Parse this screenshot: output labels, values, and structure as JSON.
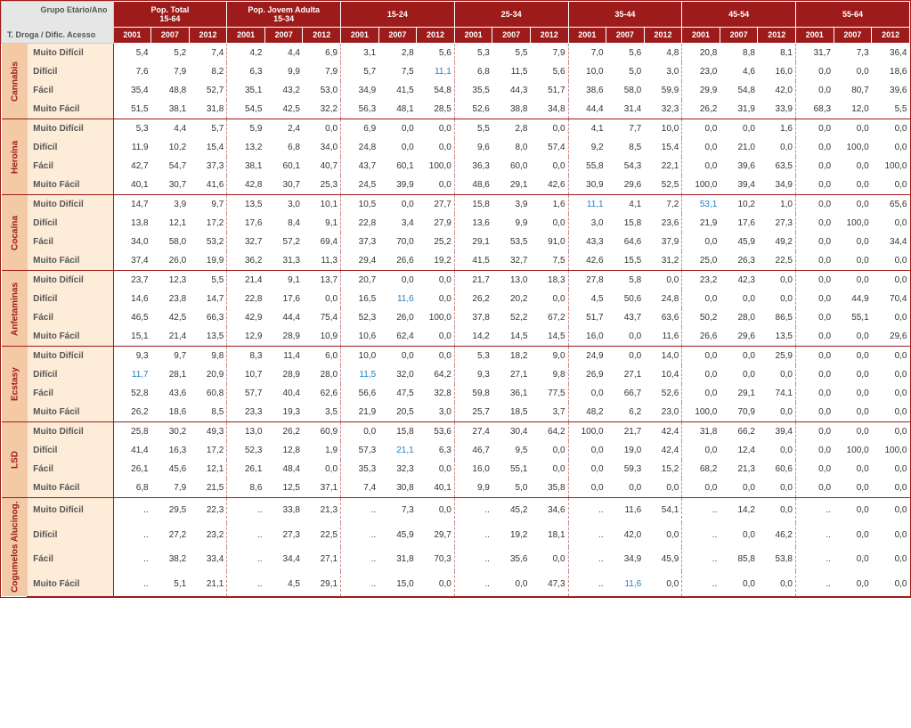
{
  "headers": {
    "corner_top": "Grupo Etário/Ano",
    "corner_bottom": "T. Droga / Dific. Acesso",
    "groups": [
      {
        "label": "Pop. Total\n15-64"
      },
      {
        "label": "Pop. Jovem Adulta\n15-34"
      },
      {
        "label": "15-24"
      },
      {
        "label": "25-34"
      },
      {
        "label": "35-44"
      },
      {
        "label": "45-54"
      },
      {
        "label": "55-64"
      }
    ],
    "years": [
      "2001",
      "2007",
      "2012"
    ]
  },
  "access_levels": [
    "Muito Difícil",
    "Difícil",
    "Fácil",
    "Muito Fácil"
  ],
  "drugs": [
    {
      "name": "Cannabis",
      "rows": [
        [
          "5,4",
          "5,2",
          "7,4",
          "4,2",
          "4,4",
          "6,9",
          "3,1",
          "2,8",
          "5,6",
          "5,3",
          "5,5",
          "7,9",
          "7,0",
          "5,6",
          "4,8",
          "20,8",
          "8,8",
          "8,1",
          "31,7",
          "7,3",
          "36,4"
        ],
        [
          "7,6",
          "7,9",
          "8,2",
          "6,3",
          "9,9",
          "7,9",
          "5,7",
          "7,5",
          "11,1",
          "6,8",
          "11,5",
          "5,6",
          "10,0",
          "5,0",
          "3,0",
          "23,0",
          "4,6",
          "16,0",
          "0,0",
          "0,0",
          "18,6"
        ],
        [
          "35,4",
          "48,8",
          "52,7",
          "35,1",
          "43,2",
          "53,0",
          "34,9",
          "41,5",
          "54,8",
          "35,5",
          "44,3",
          "51,7",
          "38,6",
          "58,0",
          "59,9",
          "29,9",
          "54,8",
          "42,0",
          "0,0",
          "80,7",
          "39,6"
        ],
        [
          "51,5",
          "38,1",
          "31,8",
          "54,5",
          "42,5",
          "32,2",
          "56,3",
          "48,1",
          "28,5",
          "52,6",
          "38,8",
          "34,8",
          "44,4",
          "31,4",
          "32,3",
          "26,2",
          "31,9",
          "33,9",
          "68,3",
          "12,0",
          "5,5"
        ]
      ],
      "blue_cells": [
        [
          1,
          8
        ]
      ]
    },
    {
      "name": "Heroína",
      "rows": [
        [
          "5,3",
          "4,4",
          "5,7",
          "5,9",
          "2,4",
          "0,0",
          "6,9",
          "0,0",
          "0,0",
          "5,5",
          "2,8",
          "0,0",
          "4,1",
          "7,7",
          "10,0",
          "0,0",
          "0,0",
          "1,6",
          "0,0",
          "0,0",
          "0,0"
        ],
        [
          "11,9",
          "10,2",
          "15,4",
          "13,2",
          "6,8",
          "34,0",
          "24,8",
          "0,0",
          "0,0",
          "9,6",
          "8,0",
          "57,4",
          "9,2",
          "8,5",
          "15,4",
          "0,0",
          "21,0",
          "0,0",
          "0,0",
          "100,0",
          "0,0"
        ],
        [
          "42,7",
          "54,7",
          "37,3",
          "38,1",
          "60,1",
          "40,7",
          "43,7",
          "60,1",
          "100,0",
          "36,3",
          "60,0",
          "0,0",
          "55,8",
          "54,3",
          "22,1",
          "0,0",
          "39,6",
          "63,5",
          "0,0",
          "0,0",
          "100,0"
        ],
        [
          "40,1",
          "30,7",
          "41,6",
          "42,8",
          "30,7",
          "25,3",
          "24,5",
          "39,9",
          "0,0",
          "48,6",
          "29,1",
          "42,6",
          "30,9",
          "29,6",
          "52,5",
          "100,0",
          "39,4",
          "34,9",
          "0,0",
          "0,0",
          "0,0"
        ]
      ],
      "blue_cells": []
    },
    {
      "name": "Cocaína",
      "rows": [
        [
          "14,7",
          "3,9",
          "9,7",
          "13,5",
          "3,0",
          "10,1",
          "10,5",
          "0,0",
          "27,7",
          "15,8",
          "3,9",
          "1,6",
          "11,1",
          "4,1",
          "7,2",
          "53,1",
          "10,2",
          "1,0",
          "0,0",
          "0,0",
          "65,6"
        ],
        [
          "13,8",
          "12,1",
          "17,2",
          "17,6",
          "8,4",
          "9,1",
          "22,8",
          "3,4",
          "27,9",
          "13,6",
          "9,9",
          "0,0",
          "3,0",
          "15,8",
          "23,6",
          "21,9",
          "17,6",
          "27,3",
          "0,0",
          "100,0",
          "0,0"
        ],
        [
          "34,0",
          "58,0",
          "53,2",
          "32,7",
          "57,2",
          "69,4",
          "37,3",
          "70,0",
          "25,2",
          "29,1",
          "53,5",
          "91,0",
          "43,3",
          "64,6",
          "37,9",
          "0,0",
          "45,9",
          "49,2",
          "0,0",
          "0,0",
          "34,4"
        ],
        [
          "37,4",
          "26,0",
          "19,9",
          "36,2",
          "31,3",
          "11,3",
          "29,4",
          "26,6",
          "19,2",
          "41,5",
          "32,7",
          "7,5",
          "42,6",
          "15,5",
          "31,2",
          "25,0",
          "26,3",
          "22,5",
          "0,0",
          "0,0",
          "0,0"
        ]
      ],
      "blue_cells": [
        [
          0,
          12
        ],
        [
          0,
          15
        ]
      ]
    },
    {
      "name": "Anfetaminas",
      "rows": [
        [
          "23,7",
          "12,3",
          "5,5",
          "21,4",
          "9,1",
          "13,7",
          "20,7",
          "0,0",
          "0,0",
          "21,7",
          "13,0",
          "18,3",
          "27,8",
          "5,8",
          "0,0",
          "23,2",
          "42,3",
          "0,0",
          "0,0",
          "0,0",
          "0,0"
        ],
        [
          "14,6",
          "23,8",
          "14,7",
          "22,8",
          "17,6",
          "0,0",
          "16,5",
          "11,6",
          "0,0",
          "26,2",
          "20,2",
          "0,0",
          "4,5",
          "50,6",
          "24,8",
          "0,0",
          "0,0",
          "0,0",
          "0,0",
          "44,9",
          "70,4"
        ],
        [
          "46,5",
          "42,5",
          "66,3",
          "42,9",
          "44,4",
          "75,4",
          "52,3",
          "26,0",
          "100,0",
          "37,8",
          "52,2",
          "67,2",
          "51,7",
          "43,7",
          "63,6",
          "50,2",
          "28,0",
          "86,5",
          "0,0",
          "55,1",
          "0,0"
        ],
        [
          "15,1",
          "21,4",
          "13,5",
          "12,9",
          "28,9",
          "10,9",
          "10,6",
          "62,4",
          "0,0",
          "14,2",
          "14,5",
          "14,5",
          "16,0",
          "0,0",
          "11,6",
          "26,6",
          "29,6",
          "13,5",
          "0,0",
          "0,0",
          "29,6"
        ]
      ],
      "blue_cells": [
        [
          1,
          7
        ]
      ]
    },
    {
      "name": "Ecstasy",
      "rows": [
        [
          "9,3",
          "9,7",
          "9,8",
          "8,3",
          "11,4",
          "6,0",
          "10,0",
          "0,0",
          "0,0",
          "5,3",
          "18,2",
          "9,0",
          "24,9",
          "0,0",
          "14,0",
          "0,0",
          "0,0",
          "25,9",
          "0,0",
          "0,0",
          "0,0"
        ],
        [
          "11,7",
          "28,1",
          "20,9",
          "10,7",
          "28,9",
          "28,0",
          "11,5",
          "32,0",
          "64,2",
          "9,3",
          "27,1",
          "9,8",
          "26,9",
          "27,1",
          "10,4",
          "0,0",
          "0,0",
          "0,0",
          "0,0",
          "0,0",
          "0,0"
        ],
        [
          "52,8",
          "43,6",
          "60,8",
          "57,7",
          "40,4",
          "62,6",
          "56,6",
          "47,5",
          "32,8",
          "59,8",
          "36,1",
          "77,5",
          "0,0",
          "66,7",
          "52,6",
          "0,0",
          "29,1",
          "74,1",
          "0,0",
          "0,0",
          "0,0"
        ],
        [
          "26,2",
          "18,6",
          "8,5",
          "23,3",
          "19,3",
          "3,5",
          "21,9",
          "20,5",
          "3,0",
          "25,7",
          "18,5",
          "3,7",
          "48,2",
          "6,2",
          "23,0",
          "100,0",
          "70,9",
          "0,0",
          "0,0",
          "0,0",
          "0,0"
        ]
      ],
      "blue_cells": [
        [
          1,
          0
        ],
        [
          1,
          6
        ]
      ]
    },
    {
      "name": "LSD",
      "rows": [
        [
          "25,8",
          "30,2",
          "49,3",
          "13,0",
          "26,2",
          "60,9",
          "0,0",
          "15,8",
          "53,6",
          "27,4",
          "30,4",
          "64,2",
          "100,0",
          "21,7",
          "42,4",
          "31,8",
          "66,2",
          "39,4",
          "0,0",
          "0,0",
          "0,0"
        ],
        [
          "41,4",
          "16,3",
          "17,2",
          "52,3",
          "12,8",
          "1,9",
          "57,3",
          "21,1",
          "6,3",
          "46,7",
          "9,5",
          "0,0",
          "0,0",
          "19,0",
          "42,4",
          "0,0",
          "12,4",
          "0,0",
          "0,0",
          "100,0",
          "100,0"
        ],
        [
          "26,1",
          "45,6",
          "12,1",
          "26,1",
          "48,4",
          "0,0",
          "35,3",
          "32,3",
          "0,0",
          "16,0",
          "55,1",
          "0,0",
          "0,0",
          "59,3",
          "15,2",
          "68,2",
          "21,3",
          "60,6",
          "0,0",
          "0,0",
          "0,0"
        ],
        [
          "6,8",
          "7,9",
          "21,5",
          "8,6",
          "12,5",
          "37,1",
          "7,4",
          "30,8",
          "40,1",
          "9,9",
          "5,0",
          "35,8",
          "0,0",
          "0,0",
          "0,0",
          "0,0",
          "0,0",
          "0,0",
          "0,0",
          "0,0",
          "0,0"
        ]
      ],
      "blue_cells": [
        [
          1,
          7
        ]
      ]
    },
    {
      "name": "Cogumelos Alucinog.",
      "rows": [
        [
          "..",
          "29,5",
          "22,3",
          "..",
          "33,8",
          "21,3",
          "..",
          "7,3",
          "0,0",
          "..",
          "45,2",
          "34,6",
          "..",
          "11,6",
          "54,1",
          "..",
          "14,2",
          "0,0",
          "..",
          "0,0",
          "0,0"
        ],
        [
          "..",
          "27,2",
          "23,2",
          "..",
          "27,3",
          "22,5",
          "..",
          "45,9",
          "29,7",
          "..",
          "19,2",
          "18,1",
          "..",
          "42,0",
          "0,0",
          "..",
          "0,0",
          "46,2",
          "..",
          "0,0",
          "0,0"
        ],
        [
          "..",
          "38,2",
          "33,4",
          "..",
          "34,4",
          "27,1",
          "..",
          "31,8",
          "70,3",
          "..",
          "35,6",
          "0,0",
          "..",
          "34,9",
          "45,9",
          "..",
          "85,8",
          "53,8",
          "..",
          "0,0",
          "0,0"
        ],
        [
          "..",
          "5,1",
          "21,1",
          "..",
          "4,5",
          "29,1",
          "..",
          "15,0",
          "0,0",
          "..",
          "0,0",
          "47,3",
          "..",
          "11,6",
          "0,0",
          "..",
          "0,0",
          "0,0",
          "..",
          "0,0",
          "0,0"
        ]
      ],
      "blue_cells": [
        [
          3,
          13
        ]
      ]
    }
  ],
  "colors": {
    "header_bg": "#9e1b1b",
    "drug_bg": "#f4caa6",
    "access_bg": "#fdecd8",
    "blue_text": "#1e7fc4"
  }
}
